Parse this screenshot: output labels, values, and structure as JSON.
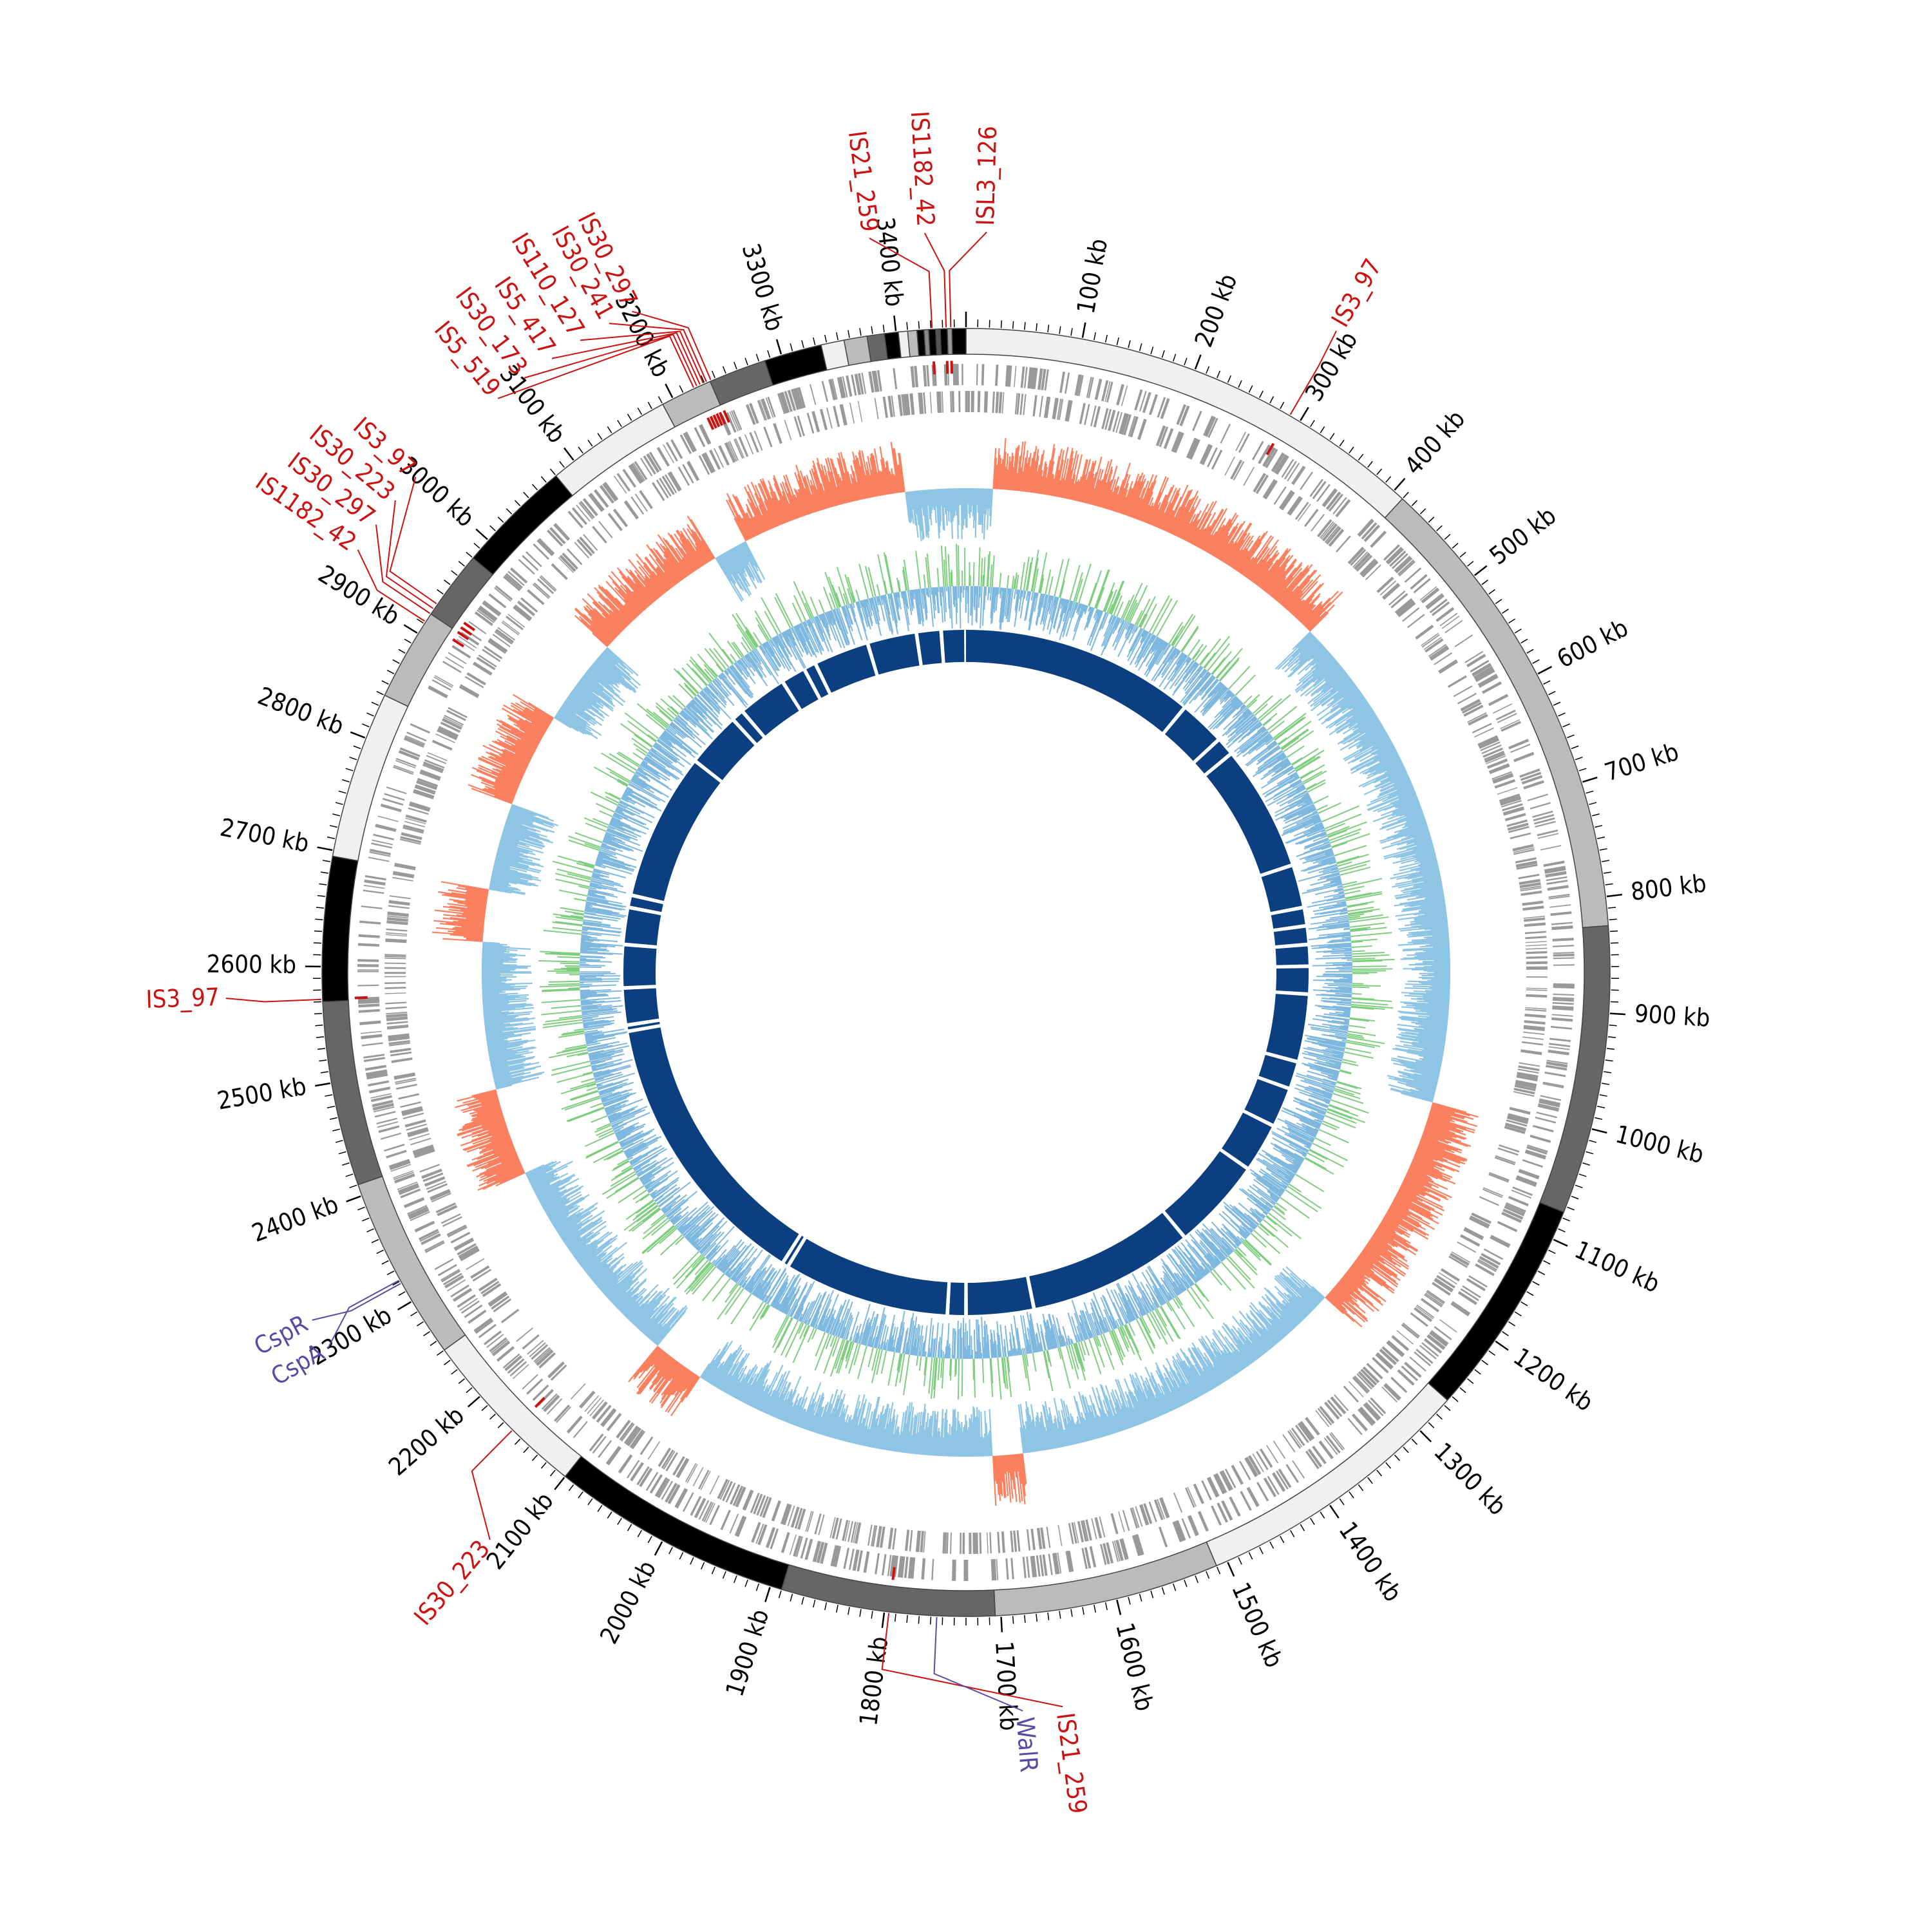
{
  "genome": {
    "length_kb": 3460,
    "tick_labels": [
      {
        "kb": 100,
        "text": "100 kb"
      },
      {
        "kb": 200,
        "text": "200 kb"
      },
      {
        "kb": 300,
        "text": "300 kb"
      },
      {
        "kb": 400,
        "text": "400 kb"
      },
      {
        "kb": 500,
        "text": "500 kb"
      },
      {
        "kb": 600,
        "text": "600 kb"
      },
      {
        "kb": 700,
        "text": "700 kb"
      },
      {
        "kb": 800,
        "text": "800 kb"
      },
      {
        "kb": 900,
        "text": "900 kb"
      },
      {
        "kb": 1000,
        "text": "1000 kb"
      },
      {
        "kb": 1100,
        "text": "1100 kb"
      },
      {
        "kb": 1200,
        "text": "1200 kb"
      },
      {
        "kb": 1300,
        "text": "1300 kb"
      },
      {
        "kb": 1400,
        "text": "1400 kb"
      },
      {
        "kb": 1500,
        "text": "1500 kb"
      },
      {
        "kb": 1600,
        "text": "1600 kb"
      },
      {
        "kb": 1700,
        "text": "1700 kb"
      },
      {
        "kb": 1800,
        "text": "1800 kb"
      },
      {
        "kb": 1900,
        "text": "1900 kb"
      },
      {
        "kb": 2000,
        "text": "2000 kb"
      },
      {
        "kb": 2100,
        "text": "2100 kb"
      },
      {
        "kb": 2200,
        "text": "2200 kb"
      },
      {
        "kb": 2300,
        "text": "2300 kb"
      },
      {
        "kb": 2400,
        "text": "2400 kb"
      },
      {
        "kb": 2500,
        "text": "2500 kb"
      },
      {
        "kb": 2600,
        "text": "2600 kb"
      },
      {
        "kb": 2700,
        "text": "2700 kb"
      },
      {
        "kb": 2800,
        "text": "2800 kb"
      },
      {
        "kb": 2900,
        "text": "2900 kb"
      },
      {
        "kb": 3000,
        "text": "3000 kb"
      },
      {
        "kb": 3100,
        "text": "3100 kb"
      },
      {
        "kb": 3200,
        "text": "3200 kb"
      },
      {
        "kb": 3300,
        "text": "3300 kb"
      },
      {
        "kb": 3400,
        "text": "3400 kb"
      }
    ]
  },
  "contigs": [
    {
      "start": 0,
      "end": 410,
      "shade": "#f0f0f0"
    },
    {
      "start": 410,
      "end": 825,
      "shade": "#bbbbbb"
    },
    {
      "start": 825,
      "end": 1075,
      "shade": "#666666"
    },
    {
      "start": 1075,
      "end": 1265,
      "shade": "#000000"
    },
    {
      "start": 1265,
      "end": 1510,
      "shade": "#f0f0f0"
    },
    {
      "start": 1510,
      "end": 1705,
      "shade": "#bbbbbb"
    },
    {
      "start": 1705,
      "end": 1890,
      "shade": "#666666"
    },
    {
      "start": 1890,
      "end": 2100,
      "shade": "#000000"
    },
    {
      "start": 2100,
      "end": 2250,
      "shade": "#f0f0f0"
    },
    {
      "start": 2250,
      "end": 2410,
      "shade": "#bbbbbb"
    },
    {
      "start": 2410,
      "end": 2570,
      "shade": "#666666"
    },
    {
      "start": 2570,
      "end": 2695,
      "shade": "#000000"
    },
    {
      "start": 2695,
      "end": 2840,
      "shade": "#f0f0f0"
    },
    {
      "start": 2840,
      "end": 2920,
      "shade": "#bbbbbb"
    },
    {
      "start": 2920,
      "end": 2980,
      "shade": "#666666"
    },
    {
      "start": 2980,
      "end": 3080,
      "shade": "#000000"
    },
    {
      "start": 3080,
      "end": 3190,
      "shade": "#f0f0f0"
    },
    {
      "start": 3190,
      "end": 3235,
      "shade": "#bbbbbb"
    },
    {
      "start": 3235,
      "end": 3285,
      "shade": "#666666"
    },
    {
      "start": 3285,
      "end": 3335,
      "shade": "#000000"
    },
    {
      "start": 3335,
      "end": 3355,
      "shade": "#f0f0f0"
    },
    {
      "start": 3355,
      "end": 3375,
      "shade": "#bbbbbb"
    },
    {
      "start": 3375,
      "end": 3390,
      "shade": "#666666"
    },
    {
      "start": 3390,
      "end": 3402,
      "shade": "#000000"
    },
    {
      "start": 3402,
      "end": 3410,
      "shade": "#f0f0f0"
    },
    {
      "start": 3410,
      "end": 3418,
      "shade": "#bbbbbb"
    },
    {
      "start": 3418,
      "end": 3424,
      "shade": "#000000"
    },
    {
      "start": 3424,
      "end": 3428,
      "shade": "#888888"
    },
    {
      "start": 3428,
      "end": 3434,
      "shade": "#000000"
    },
    {
      "start": 3434,
      "end": 3438,
      "shade": "#555555"
    },
    {
      "start": 3438,
      "end": 3444,
      "shade": "#000000"
    },
    {
      "start": 3444,
      "end": 3448,
      "shade": "#999999"
    },
    {
      "start": 3448,
      "end": 3460,
      "shade": "#000000"
    }
  ],
  "is_elements": [
    {
      "pos": 3431,
      "label": "IS21_259",
      "label_angle": -7.5
    },
    {
      "pos": 3443,
      "label": "IS1182_42",
      "label_angle": -3.2
    },
    {
      "pos": 3447,
      "label": "ISL3_126",
      "label_angle": 1.6
    },
    {
      "pos": 3236,
      "label": "IS30_297",
      "label_angle": -26.8
    },
    {
      "pos": 3232,
      "label": "IS30_241",
      "label_angle": -28.8
    },
    {
      "pos": 3229,
      "label": "IS110_127",
      "label_angle": -31.4
    },
    {
      "pos": 3226,
      "label": "IS5_417",
      "label_angle": -34.0
    },
    {
      "pos": 3223,
      "label": "IS30_173",
      "label_angle": -36.6
    },
    {
      "pos": 3220,
      "label": "IS5_519",
      "label_angle": -39.2
    },
    {
      "pos": 290,
      "label": "IS3_97",
      "label_angle": 30.0
    },
    {
      "pos": 2930,
      "label": "IS3_97",
      "label_angle": -48.0
    },
    {
      "pos": 2925,
      "label": "IS30_223",
      "label_angle": -50.4
    },
    {
      "pos": 2920,
      "label": "IS30_297",
      "label_angle": -52.8
    },
    {
      "pos": 2912,
      "label": "IS1182_42",
      "label_angle": -55.2
    },
    {
      "pos": 2572,
      "label": "IS3_97",
      "label_angle": -92.0
    },
    {
      "pos": 2160,
      "label": "IS30_223",
      "label_angle": -140.0
    },
    {
      "pos": 1796,
      "label": "IS21_259",
      "label_angle": 172.5
    }
  ],
  "genes": [
    {
      "pos": 2321,
      "label": "CspA",
      "label_angle": -120.5
    },
    {
      "pos": 2318,
      "label": "CspR",
      "label_angle": -118.0
    },
    {
      "pos": 1755,
      "label": "WalR",
      "label_angle": 175.6
    }
  ],
  "colors": {
    "is_element": "#cc1111",
    "gene_marker": "#5b4aa3",
    "cds_track": "#999999",
    "gc_skew_positive": "#fb8060",
    "gc_skew_negative": "#8ec4e4",
    "gc_content_high": "#7fcd7f",
    "gc_content_low": "#7fb8de",
    "blast_hit": "#0b3f80"
  },
  "ring_gaps_kb": [
    380,
    455,
    485,
    690,
    760,
    790,
    820,
    855,
    900,
    1010,
    1055,
    1120,
    1200,
    1350,
    1620,
    1730,
    1760,
    2030,
    2040,
    2500,
    2510,
    2570,
    2640,
    2700,
    2720,
    2960,
    3050,
    3070,
    3150,
    3190,
    3210,
    3300,
    3380,
    3420
  ]
}
